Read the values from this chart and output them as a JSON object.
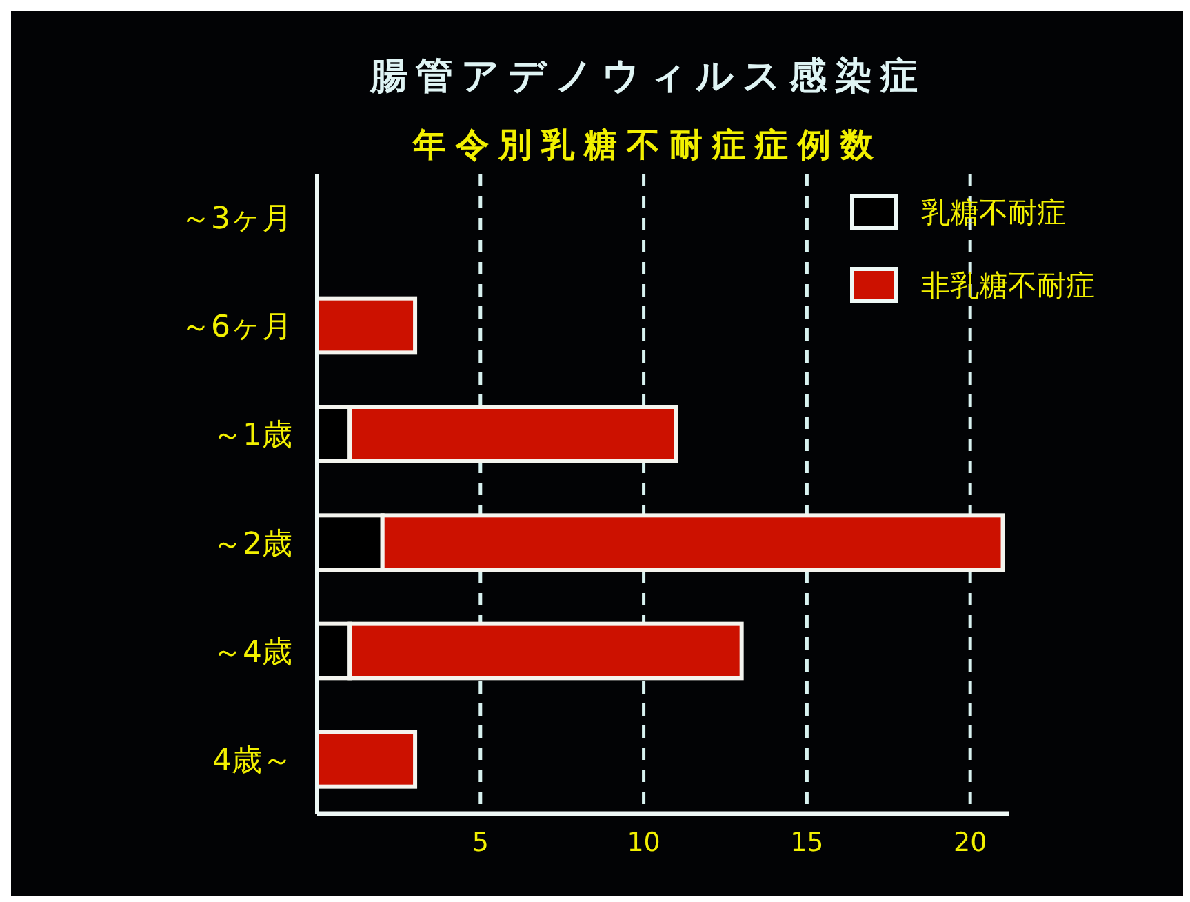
{
  "chart_data": {
    "type": "bar",
    "orientation": "horizontal",
    "stacked": true,
    "title": "腸管アデノウィルス感染症",
    "subtitle": "年令別乳糖不耐症症例数",
    "categories": [
      "～3ヶ月",
      "～6ヶ月",
      "～1歳",
      "～2歳",
      "～4歳",
      "4歳～"
    ],
    "series": [
      {
        "name": "乳糖不耐症",
        "color": "#000000",
        "values": [
          0,
          0,
          1,
          2,
          1,
          0
        ]
      },
      {
        "name": "非乳糖不耐症",
        "color": "#cc1100",
        "values": [
          0,
          3,
          10,
          19,
          12,
          3
        ]
      }
    ],
    "xlim": [
      0,
      21.2
    ],
    "xticks": [
      5,
      10,
      15,
      20
    ],
    "grid": "x",
    "legend": "top right"
  }
}
